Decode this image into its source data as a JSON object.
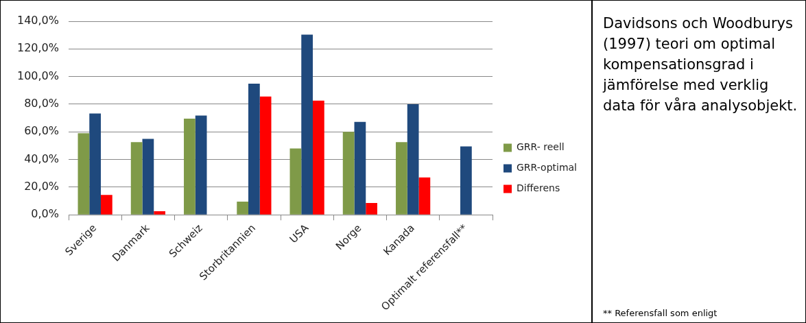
{
  "chart_data": {
    "type": "bar",
    "title": "Davidsons och Woodburys (1997) teori om optimal kompensationsgrad i jämförelse med verklig data för våra analysobjekt.",
    "categories": [
      "Sverige",
      "Danmark",
      "Schweiz",
      "Storbritannien",
      "USA",
      "Norge",
      "Kanada",
      "Optimalt referensfall**"
    ],
    "series": [
      {
        "name": "GRR- reell",
        "color": "#7f9a48",
        "values": [
          59,
          52.6,
          69.5,
          9.5,
          48,
          60,
          52.6,
          null
        ]
      },
      {
        "name": "GRR-optimal",
        "color": "#1f497d",
        "values": [
          73.3,
          54.9,
          71.8,
          94.9,
          130.3,
          67.2,
          80,
          49.5
        ]
      },
      {
        "name": "Differens",
        "color": "#ff0000",
        "values": [
          14.4,
          2.6,
          null,
          85.6,
          82.6,
          8.5,
          27,
          null
        ]
      }
    ],
    "ylim": [
      0,
      140
    ],
    "yticks": [
      {
        "value": 0,
        "label": "0,0%"
      },
      {
        "value": 20,
        "label": "20,0%"
      },
      {
        "value": 40,
        "label": "40,0%"
      },
      {
        "value": 60,
        "label": "60,0%"
      },
      {
        "value": 80,
        "label": "80,0%"
      },
      {
        "value": 100,
        "label": "100,0%"
      },
      {
        "value": 120,
        "label": "120,0%"
      },
      {
        "value": 140,
        "label": "140,0%"
      }
    ],
    "grid": "y",
    "legend": "right",
    "annotations": [
      "** Referensfall som enligt"
    ]
  }
}
